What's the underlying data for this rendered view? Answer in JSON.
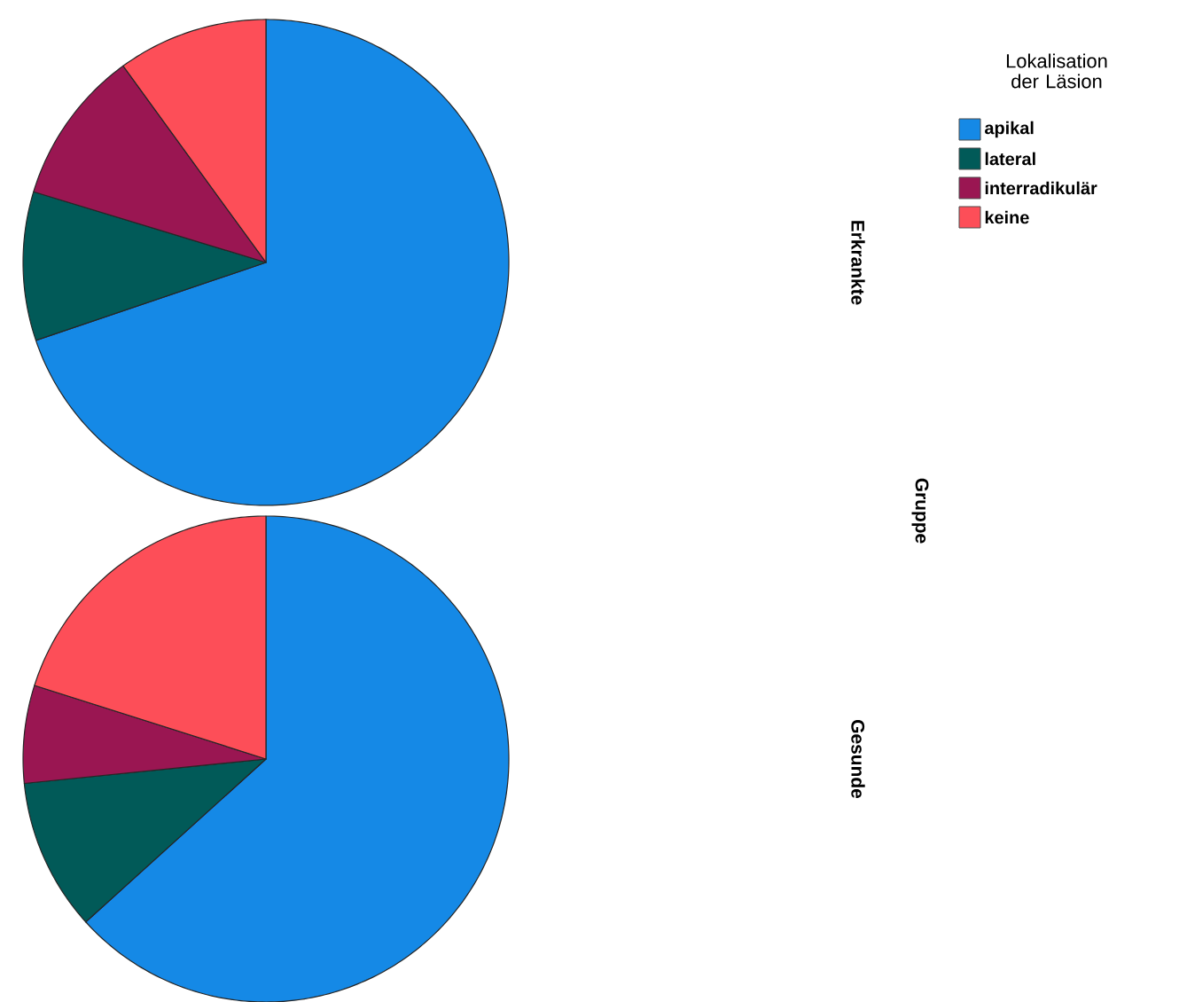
{
  "chart_data": [
    {
      "type": "pie",
      "y2label": "Erkrankte",
      "legend_title": "Lokalisation der Läsion",
      "legend": "top right",
      "annotations": [
        "Gruppe"
      ],
      "categories": [
        "apikal",
        "lateral",
        "interradikulär",
        "keine"
      ],
      "values": [
        69.8,
        9.9,
        10.3,
        10.0
      ],
      "colors": [
        "#1589e6",
        "#015a58",
        "#9a1652",
        "#fd4e58"
      ]
    },
    {
      "type": "pie",
      "y2label": "Gesunde",
      "categories": [
        null,
        null,
        null,
        null
      ],
      "values": [
        63.3,
        10.1,
        6.5,
        20.1
      ],
      "colors": [
        "#1589e6",
        "#015a58",
        "#9a1652",
        "#fd4e58"
      ]
    }
  ]
}
